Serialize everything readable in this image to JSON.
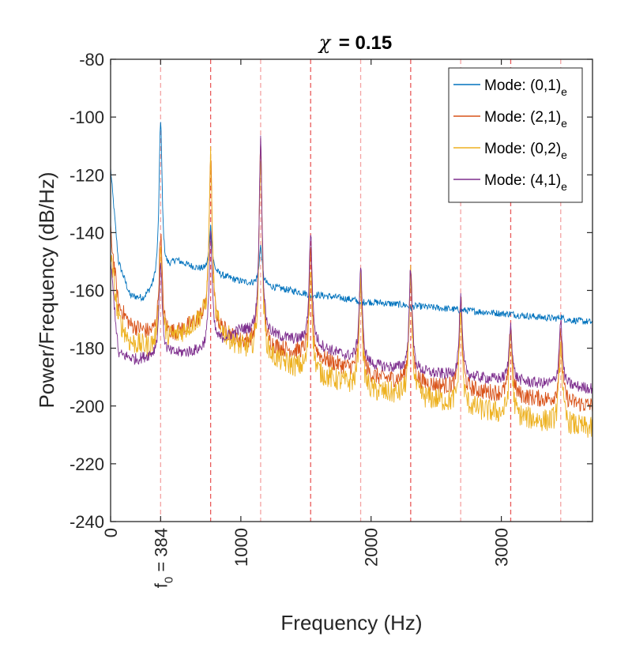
{
  "chart_data": {
    "type": "line",
    "title_symbol": "χ",
    "title_value": "= 0.15",
    "xlabel": "Frequency (Hz)",
    "ylabel": "Power/Frequency (dB/Hz)",
    "xlim": [
      0,
      3700
    ],
    "ylim": [
      -240,
      -80
    ],
    "xticks": [
      {
        "value": 0,
        "label": "0"
      },
      {
        "value": 1000,
        "label": "1000"
      },
      {
        "value": 2000,
        "label": "2000"
      },
      {
        "value": 3000,
        "label": "3000"
      }
    ],
    "f0_tick": {
      "value": 384,
      "label_base": "f",
      "label_sub": "0",
      "label_rest": " = 384"
    },
    "yticks": [
      -80,
      -100,
      -120,
      -140,
      -160,
      -180,
      -200,
      -220,
      -240
    ],
    "harmonics": [
      384,
      768,
      1152,
      1536,
      1920,
      2304,
      2688,
      3072,
      3456
    ],
    "legend_position": "top-right",
    "series": [
      {
        "label_base": "Mode: (0,1)",
        "label_sub": "e",
        "color": "#0072BD",
        "floor": [
          [
            0,
            -118
          ],
          [
            60,
            -150
          ],
          [
            150,
            -162
          ],
          [
            250,
            -163
          ],
          [
            320,
            -160
          ],
          [
            500,
            -150
          ],
          [
            700,
            -153
          ],
          [
            1000,
            -157
          ],
          [
            1500,
            -161
          ],
          [
            2000,
            -164
          ],
          [
            2500,
            -166
          ],
          [
            3000,
            -168
          ],
          [
            3700,
            -171
          ]
        ],
        "peaks": [
          [
            384,
            -101
          ],
          [
            768,
            -138
          ],
          [
            1152,
            -145
          ],
          [
            1536,
            -162
          ],
          [
            1920,
            -165
          ],
          [
            2304,
            -166
          ],
          [
            2688,
            -167
          ],
          [
            3072,
            -168
          ],
          [
            3456,
            -169
          ]
        ],
        "noise": 1.2
      },
      {
        "label_base": "Mode: (2,1)",
        "label_sub": "e",
        "color": "#D95319",
        "floor": [
          [
            0,
            -140
          ],
          [
            60,
            -165
          ],
          [
            150,
            -172
          ],
          [
            300,
            -175
          ],
          [
            500,
            -175
          ],
          [
            700,
            -170
          ],
          [
            1000,
            -178
          ],
          [
            1500,
            -182
          ],
          [
            2000,
            -190
          ],
          [
            2500,
            -193
          ],
          [
            3000,
            -196
          ],
          [
            3700,
            -200
          ]
        ],
        "peaks": [
          [
            384,
            -140
          ],
          [
            768,
            -113
          ],
          [
            1152,
            -110
          ],
          [
            1536,
            -148
          ],
          [
            1920,
            -155
          ],
          [
            2304,
            -152
          ],
          [
            2688,
            -163
          ],
          [
            3072,
            -172
          ],
          [
            3456,
            -174
          ]
        ],
        "noise": 3
      },
      {
        "label_base": "Mode: (0,2)",
        "label_sub": "e",
        "color": "#EDB120",
        "floor": [
          [
            0,
            -148
          ],
          [
            60,
            -170
          ],
          [
            150,
            -178
          ],
          [
            300,
            -180
          ],
          [
            500,
            -176
          ],
          [
            700,
            -170
          ],
          [
            1000,
            -180
          ],
          [
            1500,
            -188
          ],
          [
            2000,
            -195
          ],
          [
            2500,
            -198
          ],
          [
            3000,
            -203
          ],
          [
            3700,
            -208
          ]
        ],
        "peaks": [
          [
            384,
            -146
          ],
          [
            768,
            -114
          ],
          [
            1152,
            -112
          ],
          [
            1536,
            -152
          ],
          [
            1920,
            -156
          ],
          [
            2304,
            -155
          ],
          [
            2688,
            -168
          ],
          [
            3072,
            -175
          ],
          [
            3456,
            -178
          ]
        ],
        "noise": 4
      },
      {
        "label_base": "Mode: (4,1)",
        "label_sub": "e",
        "color": "#7E2F8E",
        "floor": [
          [
            0,
            -150
          ],
          [
            60,
            -182
          ],
          [
            200,
            -184
          ],
          [
            300,
            -183
          ],
          [
            500,
            -182
          ],
          [
            700,
            -181
          ],
          [
            1000,
            -174
          ],
          [
            1500,
            -178
          ],
          [
            2000,
            -186
          ],
          [
            2500,
            -189
          ],
          [
            3000,
            -191
          ],
          [
            3700,
            -194
          ]
        ],
        "peaks": [
          [
            384,
            -150
          ],
          [
            768,
            -140
          ],
          [
            1152,
            -108
          ],
          [
            1536,
            -140
          ],
          [
            1920,
            -152
          ],
          [
            2304,
            -152
          ],
          [
            2688,
            -163
          ],
          [
            3072,
            -172
          ],
          [
            3456,
            -170
          ]
        ],
        "noise": 2
      }
    ]
  }
}
